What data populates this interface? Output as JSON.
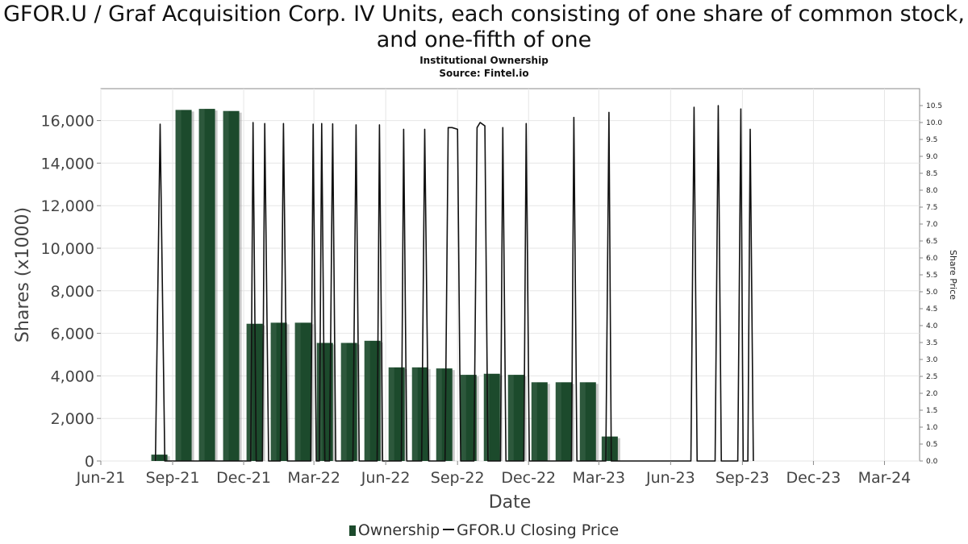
{
  "chart_data": {
    "type": "bar",
    "title": "GFOR.U / Graf Acquisition Corp. IV Units, each consisting of one share of common stock, and one-fifth of one",
    "subtitle_lines": [
      "Institutional Ownership",
      "Source: Fintel.io"
    ],
    "xlabel": "Date",
    "ylabel": "Shares (x1000)",
    "ylabel_right": "Share Price",
    "x_tick_labels": [
      "Jun-21",
      "Sep-21",
      "Dec-21",
      "Mar-22",
      "Jun-22",
      "Sep-22",
      "Dec-22",
      "Mar-23",
      "Jun-23",
      "Sep-23",
      "Dec-23",
      "Mar-24"
    ],
    "y_ticks": [
      "0",
      "2,000",
      "4,000",
      "6,000",
      "8,000",
      "10,000",
      "12,000",
      "14,000",
      "16,000"
    ],
    "y2_ticks": [
      "0.0",
      "0.5",
      "1.0",
      "1.5",
      "2.0",
      "2.5",
      "3.0",
      "3.5",
      "4.0",
      "4.5",
      "5.0",
      "5.5",
      "6.0",
      "6.5",
      "7.0",
      "7.5",
      "8.0",
      "8.5",
      "9.0",
      "9.5",
      "10.0",
      "10.5"
    ],
    "ylim": [
      0,
      17500
    ],
    "y2lim": [
      0,
      11.0
    ],
    "xlim": [
      "2021-06-01",
      "2024-04-15"
    ],
    "grid": true,
    "legend_position": "bottom",
    "series": [
      {
        "name": "Ownership",
        "kind": "bar",
        "color": "#1c4a2c",
        "points": [
          {
            "x": "2021-08-15",
            "y": 300
          },
          {
            "x": "2021-09-15",
            "y": 16500
          },
          {
            "x": "2021-10-15",
            "y": 16550
          },
          {
            "x": "2021-11-15",
            "y": 16450
          },
          {
            "x": "2021-12-15",
            "y": 6450
          },
          {
            "x": "2022-01-15",
            "y": 6500
          },
          {
            "x": "2022-02-15",
            "y": 6500
          },
          {
            "x": "2022-03-15",
            "y": 5550
          },
          {
            "x": "2022-04-15",
            "y": 5550
          },
          {
            "x": "2022-05-15",
            "y": 5650
          },
          {
            "x": "2022-06-15",
            "y": 4400
          },
          {
            "x": "2022-07-15",
            "y": 4400
          },
          {
            "x": "2022-08-15",
            "y": 4350
          },
          {
            "x": "2022-09-15",
            "y": 4050
          },
          {
            "x": "2022-10-15",
            "y": 4100
          },
          {
            "x": "2022-11-15",
            "y": 4050
          },
          {
            "x": "2022-12-15",
            "y": 3700
          },
          {
            "x": "2023-01-15",
            "y": 3700
          },
          {
            "x": "2023-02-15",
            "y": 3700
          },
          {
            "x": "2023-03-15",
            "y": 1150
          }
        ]
      },
      {
        "name": "GFOR.U Closing Price",
        "kind": "line",
        "color": "#111111",
        "points": [
          {
            "x": "2021-08-10",
            "y": 0
          },
          {
            "x": "2021-08-16",
            "y": 9.95
          },
          {
            "x": "2021-08-22",
            "y": 0
          },
          {
            "x": "2021-12-10",
            "y": 0
          },
          {
            "x": "2021-12-13",
            "y": 10.0
          },
          {
            "x": "2021-12-17",
            "y": 0
          },
          {
            "x": "2021-12-25",
            "y": 0
          },
          {
            "x": "2021-12-28",
            "y": 9.97
          },
          {
            "x": "2022-01-02",
            "y": 0
          },
          {
            "x": "2022-01-17",
            "y": 0
          },
          {
            "x": "2022-01-21",
            "y": 9.97
          },
          {
            "x": "2022-01-26",
            "y": 0
          },
          {
            "x": "2022-02-25",
            "y": 0
          },
          {
            "x": "2022-02-28",
            "y": 9.95
          },
          {
            "x": "2022-03-04",
            "y": 0
          },
          {
            "x": "2022-03-08",
            "y": 0
          },
          {
            "x": "2022-03-11",
            "y": 9.97
          },
          {
            "x": "2022-03-15",
            "y": 0
          },
          {
            "x": "2022-03-21",
            "y": 0
          },
          {
            "x": "2022-03-25",
            "y": 9.96
          },
          {
            "x": "2022-03-29",
            "y": 0
          },
          {
            "x": "2022-04-20",
            "y": 0
          },
          {
            "x": "2022-04-24",
            "y": 9.93
          },
          {
            "x": "2022-04-28",
            "y": 0
          },
          {
            "x": "2022-05-21",
            "y": 0
          },
          {
            "x": "2022-05-24",
            "y": 9.93
          },
          {
            "x": "2022-05-28",
            "y": 0
          },
          {
            "x": "2022-06-21",
            "y": 0
          },
          {
            "x": "2022-06-24",
            "y": 9.8
          },
          {
            "x": "2022-06-28",
            "y": 0
          },
          {
            "x": "2022-07-17",
            "y": 0
          },
          {
            "x": "2022-07-21",
            "y": 9.8
          },
          {
            "x": "2022-07-26",
            "y": 0
          },
          {
            "x": "2022-08-16",
            "y": 0
          },
          {
            "x": "2022-08-20",
            "y": 9.85
          },
          {
            "x": "2022-08-25",
            "y": 9.85
          },
          {
            "x": "2022-09-01",
            "y": 9.8
          },
          {
            "x": "2022-09-05",
            "y": 0
          },
          {
            "x": "2022-09-22",
            "y": 0
          },
          {
            "x": "2022-09-26",
            "y": 9.85
          },
          {
            "x": "2022-09-30",
            "y": 10.0
          },
          {
            "x": "2022-10-06",
            "y": 9.9
          },
          {
            "x": "2022-10-10",
            "y": 0
          },
          {
            "x": "2022-10-26",
            "y": 0
          },
          {
            "x": "2022-10-29",
            "y": 9.85
          },
          {
            "x": "2022-11-02",
            "y": 0
          },
          {
            "x": "2022-11-25",
            "y": 0
          },
          {
            "x": "2022-11-28",
            "y": 9.97
          },
          {
            "x": "2022-12-02",
            "y": 0
          },
          {
            "x": "2023-01-25",
            "y": 0
          },
          {
            "x": "2023-01-28",
            "y": 10.15
          },
          {
            "x": "2023-02-01",
            "y": 0
          },
          {
            "x": "2023-03-10",
            "y": 0
          },
          {
            "x": "2023-03-14",
            "y": 10.3
          },
          {
            "x": "2023-03-17",
            "y": 0
          },
          {
            "x": "2023-06-27",
            "y": 0
          },
          {
            "x": "2023-07-01",
            "y": 10.45
          },
          {
            "x": "2023-07-05",
            "y": 0
          },
          {
            "x": "2023-07-28",
            "y": 0
          },
          {
            "x": "2023-08-01",
            "y": 10.5
          },
          {
            "x": "2023-08-05",
            "y": 0
          },
          {
            "x": "2023-08-26",
            "y": 0
          },
          {
            "x": "2023-08-30",
            "y": 10.4
          },
          {
            "x": "2023-09-02",
            "y": 0
          },
          {
            "x": "2023-09-08",
            "y": 0
          },
          {
            "x": "2023-09-11",
            "y": 9.8
          },
          {
            "x": "2023-09-15",
            "y": 0
          }
        ]
      }
    ]
  }
}
